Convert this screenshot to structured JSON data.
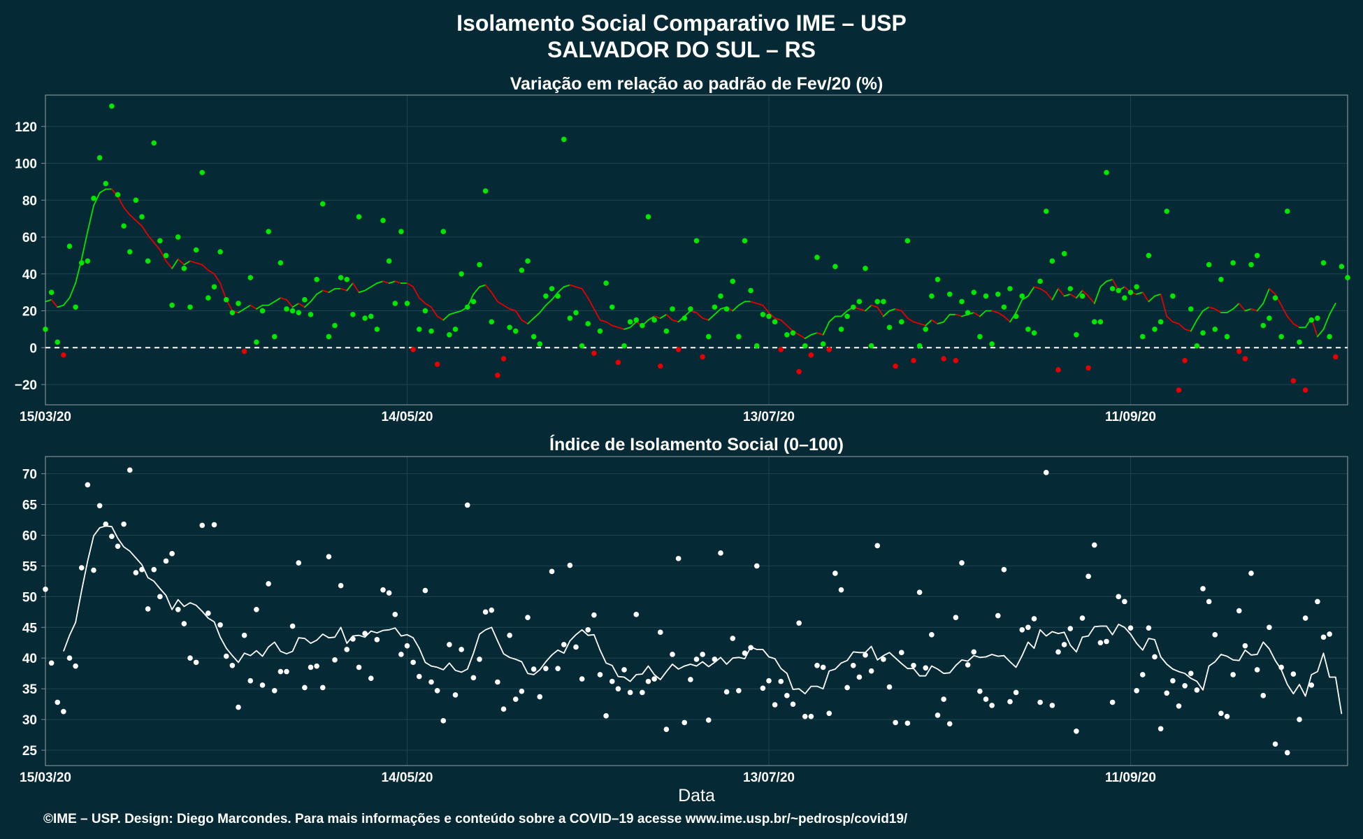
{
  "header": {
    "title_line1": "Isolamento Social Comparativo IME – USP",
    "title_line2": "SALVADOR DO SUL – RS"
  },
  "footer": {
    "credit": "©IME – USP. Design: Diego Marcondes. Para mais informações e conteúdo sobre a COVID–19 acesse www.ime.usp.br/~pedrosp/covid19/"
  },
  "colors": {
    "background": "#062a35",
    "positive": "#00e600",
    "negative": "#e60000",
    "index": "#ffffff",
    "grid": "#1e4450",
    "frame": "#7e8f94"
  },
  "chart_data": [
    {
      "type": "scatter",
      "title": "Variação em relação ao padrão de Fev/20 (%)",
      "xlabel": "",
      "ylabel": "",
      "x_start": "15/03/20",
      "x_end": "22/10/20",
      "x_tick_labels": [
        "15/03/20",
        "14/05/20",
        "13/07/20",
        "11/09/20"
      ],
      "x_tick_offsets": [
        0,
        60,
        120,
        180
      ],
      "xlim_days": [
        0,
        216
      ],
      "ylim": [
        -31,
        137
      ],
      "y_ticks": [
        -20,
        0,
        20,
        40,
        60,
        80,
        100,
        120
      ],
      "y_tick_labels": [
        "−20",
        "0",
        "20",
        "40",
        "60",
        "80",
        "100",
        "120"
      ],
      "reference_line": 0,
      "grid": true,
      "series": [
        {
          "values": [
            10,
            30,
            3,
            -4,
            55,
            22,
            46,
            47,
            81,
            103,
            89,
            131,
            83,
            66,
            52,
            80,
            71,
            47,
            111,
            58,
            50,
            23,
            60,
            43,
            22,
            53,
            95,
            27,
            33,
            52,
            26,
            19,
            24,
            -2,
            38,
            3,
            20,
            63,
            6,
            46,
            21,
            20,
            19,
            26,
            18,
            37,
            78,
            6,
            12,
            38,
            37,
            18,
            71,
            16,
            17,
            10,
            69,
            47,
            24,
            63,
            24,
            -1,
            10,
            20,
            9,
            -9,
            63,
            7,
            10,
            40,
            22,
            25,
            45,
            85,
            14,
            -15,
            -6,
            11,
            9,
            42,
            47,
            6,
            2,
            28,
            32,
            28,
            113,
            16,
            19,
            1,
            13,
            -3,
            9,
            35,
            22,
            -8,
            1,
            14,
            15,
            12,
            71,
            15,
            -10,
            9,
            21,
            -1,
            16,
            21,
            58,
            -5,
            6,
            22,
            28,
            21,
            36,
            6,
            58,
            31,
            1,
            18,
            17,
            14,
            -1,
            7,
            8,
            -13,
            1,
            -4,
            49,
            2,
            -1,
            44,
            10,
            17,
            22,
            25,
            43,
            1,
            25,
            25,
            11,
            -10,
            14,
            58,
            -7,
            1,
            10,
            28,
            37,
            -6,
            29,
            -7,
            25,
            19,
            30,
            6,
            28,
            2,
            29,
            22,
            32,
            17,
            28,
            10,
            8,
            36,
            74,
            47,
            -12,
            51,
            32,
            7,
            28,
            -11,
            14,
            14,
            95,
            32,
            31,
            27,
            30,
            33,
            6,
            50,
            10,
            14,
            74,
            28,
            -23,
            -7,
            21,
            1,
            8,
            45,
            10,
            37,
            6,
            46,
            -2,
            -6,
            45,
            50,
            12,
            16,
            27,
            6,
            74,
            -18,
            3,
            -23,
            15,
            16,
            46,
            6,
            -5,
            44,
            38
          ]
        }
      ],
      "moving_average": {
        "start_day": 0,
        "values": [
          25,
          26,
          22,
          23,
          27,
          35,
          48,
          63,
          77,
          84,
          86,
          86,
          82,
          76,
          72,
          69,
          66,
          61,
          57,
          53,
          47,
          43,
          48,
          45,
          47,
          46,
          45,
          42,
          40,
          35,
          26,
          20,
          19,
          21,
          23,
          21,
          23,
          23,
          25,
          27,
          26,
          22,
          24,
          22,
          25,
          29,
          31,
          30,
          32,
          32,
          31,
          35,
          30,
          31,
          33,
          35,
          36,
          35,
          36,
          35,
          35,
          33,
          27,
          24,
          22,
          17,
          15,
          18,
          19,
          20,
          22,
          29,
          33,
          34,
          30,
          25,
          23,
          21,
          20,
          15,
          13,
          16,
          19,
          23,
          26,
          30,
          33,
          34,
          33,
          32,
          27,
          21,
          15,
          14,
          12,
          11,
          10,
          11,
          14,
          12,
          15,
          17,
          16,
          18,
          15,
          14,
          17,
          20,
          19,
          16,
          15,
          18,
          21,
          22,
          20,
          23,
          25,
          25,
          24,
          23,
          19,
          16,
          15,
          12,
          9,
          7,
          5,
          7,
          8,
          7,
          14,
          17,
          17,
          20,
          22,
          21,
          20,
          23,
          22,
          17,
          20,
          21,
          20,
          16,
          14,
          13,
          12,
          15,
          13,
          14,
          18,
          18,
          17,
          18,
          19,
          17,
          20,
          20,
          19,
          17,
          14,
          19,
          26,
          28,
          33,
          32,
          30,
          26,
          32,
          28,
          29,
          27,
          31,
          28,
          24,
          33,
          36,
          37,
          31,
          33,
          30,
          29,
          30,
          25,
          28,
          29,
          17,
          14,
          13,
          10,
          9,
          15,
          20,
          22,
          21,
          19,
          19,
          21,
          24,
          20,
          21,
          20,
          24,
          32,
          29,
          23,
          17,
          13,
          11,
          11,
          16,
          6,
          10,
          18,
          24
        ]
      }
    },
    {
      "type": "scatter",
      "title": "Índice de Isolamento Social (0–100)",
      "xlabel": "Data",
      "ylabel": "",
      "x_start": "15/03/20",
      "x_end": "22/10/20",
      "x_tick_labels": [
        "15/03/20",
        "14/05/20",
        "13/07/20",
        "11/09/20"
      ],
      "x_tick_offsets": [
        0,
        60,
        120,
        180
      ],
      "xlim_days": [
        0,
        216
      ],
      "ylim": [
        22.5,
        72.8
      ],
      "y_ticks": [
        25,
        30,
        35,
        40,
        45,
        50,
        55,
        60,
        65,
        70
      ],
      "y_tick_labels": [
        "25",
        "30",
        "35",
        "40",
        "45",
        "50",
        "55",
        "60",
        "65",
        "70"
      ],
      "grid": true,
      "series": [
        {
          "values": [
            51.2,
            39.2,
            32.8,
            31.3,
            40.0,
            38.7,
            54.7,
            68.2,
            54.3,
            64.8,
            61.8,
            59.8,
            58.2,
            61.8,
            70.6,
            53.9,
            54.4,
            48.0,
            54.4,
            50.0,
            55.8,
            57.0,
            47.9,
            45.6,
            40.0,
            39.3,
            61.6,
            47.3,
            61.7,
            45.4,
            40.3,
            38.8,
            32.0,
            43.7,
            36.3,
            47.9,
            35.6,
            52.1,
            34.7,
            37.8,
            37.8,
            45.2,
            55.5,
            35.2,
            38.5,
            38.7,
            35.2,
            56.5,
            39.7,
            51.8,
            41.4,
            43.1,
            38.5,
            44.0,
            36.7,
            43.0,
            51.1,
            50.6,
            47.1,
            40.6,
            42.0,
            39.3,
            37.0,
            51.0,
            36.1,
            34.7,
            29.8,
            42.2,
            34.0,
            41.4,
            64.9,
            36.8,
            39.8,
            47.5,
            47.8,
            36.1,
            31.7,
            43.7,
            33.3,
            34.6,
            46.6,
            38.2,
            33.7,
            38.3,
            54.1,
            38.3,
            42.2,
            55.1,
            41.8,
            36.6,
            44.6,
            47.0,
            37.3,
            30.6,
            36.2,
            35.0,
            38.1,
            34.4,
            47.1,
            34.4,
            36.2,
            36.6,
            44.2,
            28.4,
            40.6,
            56.2,
            29.5,
            36.5,
            39.8,
            40.6,
            29.9,
            39.8,
            57.1,
            34.5,
            43.2,
            34.7,
            40.8,
            41.7,
            55.0,
            35.1,
            36.3,
            32.4,
            36.2,
            33.9,
            32.5,
            45.7,
            30.5,
            30.5,
            38.8,
            38.5,
            31.0,
            53.8,
            51.1,
            35.2,
            38.8,
            36.9,
            40.5,
            37.9,
            58.3,
            39.8,
            35.3,
            29.5,
            40.9,
            29.4,
            38.8,
            50.7,
            38.4,
            43.8,
            30.7,
            33.3,
            29.3,
            46.6,
            55.5,
            38.9,
            41.0,
            34.6,
            33.3,
            32.3,
            46.9,
            54.4,
            32.9,
            34.4,
            44.6,
            45.0,
            46.4,
            32.8,
            70.2,
            32.3,
            41.0,
            42.2,
            44.8,
            28.1,
            46.5,
            53.3,
            58.4,
            42.5,
            42.7,
            32.8,
            50.0,
            49.2,
            44.9,
            34.7,
            37.3,
            44.9,
            40.2,
            28.5,
            34.3,
            36.3,
            32.2,
            35.5,
            37.5,
            34.8,
            51.3,
            49.2,
            43.8,
            31.0,
            30.5,
            37.3,
            47.7,
            42.0,
            53.8,
            38.1,
            33.9,
            45.0,
            26.0,
            38.5,
            24.6,
            37.4,
            30.0,
            46.5,
            35.6,
            49.2,
            43.4,
            43.9
          ]
        }
      ],
      "moving_average": {
        "start_day": 3,
        "values": [
          41.1,
          43.7,
          45.8,
          51.0,
          55.8,
          59.9,
          61.2,
          61.5,
          61.4,
          59.5,
          58.1,
          57.4,
          56.3,
          55.2,
          53.1,
          52.5,
          51.3,
          50.2,
          47.9,
          49.5,
          48.4,
          49.0,
          48.6,
          47.6,
          46.5,
          45.9,
          43.4,
          41.6,
          40.4,
          39.3,
          40.8,
          40.4,
          41.2,
          40.3,
          41.8,
          42.6,
          41.1,
          40.7,
          41.1,
          43.3,
          43.2,
          42.4,
          42.9,
          43.9,
          43.3,
          43.4,
          45.0,
          42.4,
          43.6,
          43.7,
          43.4,
          44.4,
          44.1,
          44.5,
          44.6,
          44.9,
          43.6,
          43.8,
          43.3,
          41.6,
          39.3,
          38.7,
          38.5,
          38.1,
          39.2,
          38.0,
          37.7,
          38.2,
          40.8,
          43.9,
          44.6,
          45.0,
          42.8,
          40.7,
          40.1,
          39.8,
          39.4,
          37.5,
          37.3,
          38.1,
          39.4,
          40.5,
          41.3,
          40.8,
          42.8,
          43.8,
          44.6,
          43.7,
          43.8,
          41.3,
          39.2,
          38.8,
          37.0,
          36.9,
          36.2,
          37.3,
          37.4,
          38.7,
          37.3,
          36.5,
          37.8,
          39.0,
          38.2,
          38.7,
          39.0,
          38.7,
          39.4,
          38.6,
          39.3,
          40.1,
          39.0,
          40.0,
          40.1,
          39.9,
          41.8,
          41.4,
          41.4,
          40.2,
          39.9,
          38.3,
          37.5,
          34.9,
          35.0,
          34.2,
          35.4,
          35.4,
          35.0,
          37.9,
          38.2,
          39.2,
          39.6,
          41.0,
          40.9,
          40.9,
          41.9,
          39.7,
          40.4,
          40.9,
          40.0,
          39.1,
          38.3,
          38.3,
          37.1,
          37.1,
          38.7,
          38.2,
          37.5,
          37.6,
          38.8,
          39.7,
          39.5,
          40.4,
          40.1,
          40.2,
          40.6,
          40.3,
          40.4,
          39.4,
          38.5,
          40.4,
          42.6,
          41.6,
          44.6,
          43.6,
          44.3,
          44.0,
          44.2,
          42.1,
          41.0,
          43.4,
          43.6,
          45.1,
          45.2,
          45.2,
          43.8,
          45.5,
          45.0,
          43.9,
          42.4,
          41.3,
          43.2,
          43.0,
          40.2,
          39.0,
          38.2,
          37.8,
          37.5,
          36.7,
          36.2,
          34.8,
          38.7,
          39.4,
          40.6,
          40.3,
          39.7,
          39.6,
          41.3,
          40.5,
          40.6,
          42.6,
          41.5,
          39.6,
          38.1,
          35.7,
          34.2,
          35.7,
          33.8,
          37.3,
          37.8,
          40.8,
          36.9,
          36.9,
          30.9
        ]
      }
    }
  ]
}
